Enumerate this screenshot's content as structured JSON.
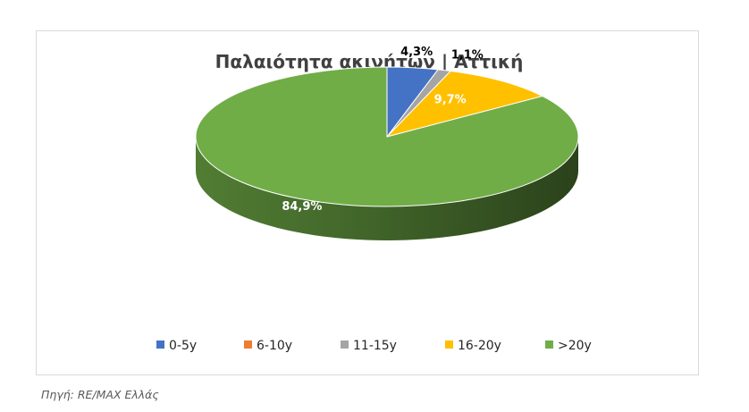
{
  "chart_data": {
    "type": "pie",
    "title": "Παλαιότητα ακινήτων | Αττική",
    "categories": [
      "0-5y",
      "6-10y",
      "11-15y",
      "16-20y",
      ">20y"
    ],
    "values": [
      4.3,
      0.0,
      1.1,
      9.7,
      84.9
    ],
    "value_labels": [
      "4,3%",
      "",
      "1,1%",
      "9,7%",
      "84,9%"
    ],
    "colors": [
      "#4472C4",
      "#ED7D31",
      "#A5A5A5",
      "#FFC000",
      "#70AD47"
    ],
    "legend_position": "bottom",
    "style": "3d"
  },
  "source": "Πηγή: RE/MAX Ελλάς"
}
